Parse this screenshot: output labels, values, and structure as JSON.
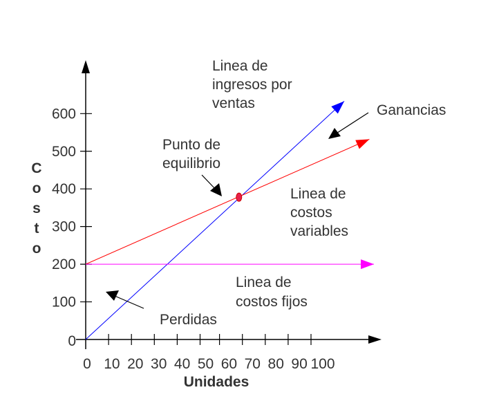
{
  "chart_data": {
    "type": "line",
    "title": "",
    "xlabel": "Unidades",
    "ylabel": "Costo",
    "xlim": [
      0,
      130
    ],
    "ylim": [
      0,
      750
    ],
    "x_ticks": [
      "0",
      "10",
      "20",
      "30",
      "40",
      "50",
      "60",
      "70",
      "80",
      "90",
      "100"
    ],
    "x_tick_values": [
      0,
      10,
      20,
      30,
      40,
      50,
      60,
      70,
      80,
      90,
      100
    ],
    "y_ticks": [
      "0",
      "100",
      "200",
      "300",
      "400",
      "500",
      "600"
    ],
    "y_tick_values": [
      0,
      100,
      200,
      300,
      400,
      500,
      600
    ],
    "grid": false,
    "series": [
      {
        "name": "Linea de ingresos por ventas",
        "color": "#0000ff",
        "points": [
          [
            0,
            0
          ],
          [
            113,
            633
          ]
        ]
      },
      {
        "name": "Linea de costos variables",
        "color": "#ff0000",
        "points": [
          [
            0,
            200
          ],
          [
            124,
            532
          ]
        ]
      },
      {
        "name": "Linea de costos fijos",
        "color": "#ff00ff",
        "points": [
          [
            0,
            200
          ],
          [
            126,
            200
          ]
        ]
      }
    ],
    "break_even": {
      "x": 67,
      "y": 378,
      "color": "#e8204a"
    },
    "annotations": {
      "ingresos": [
        "Linea de",
        "ingresos por",
        "ventas"
      ],
      "ganancias": "Ganancias",
      "punto": [
        "Punto de",
        "equilibrio"
      ],
      "variables": [
        "Linea de",
        "costos",
        "variables"
      ],
      "fijos": [
        "Linea de",
        "costos fijos"
      ],
      "perdidas": "Perdidas"
    }
  }
}
